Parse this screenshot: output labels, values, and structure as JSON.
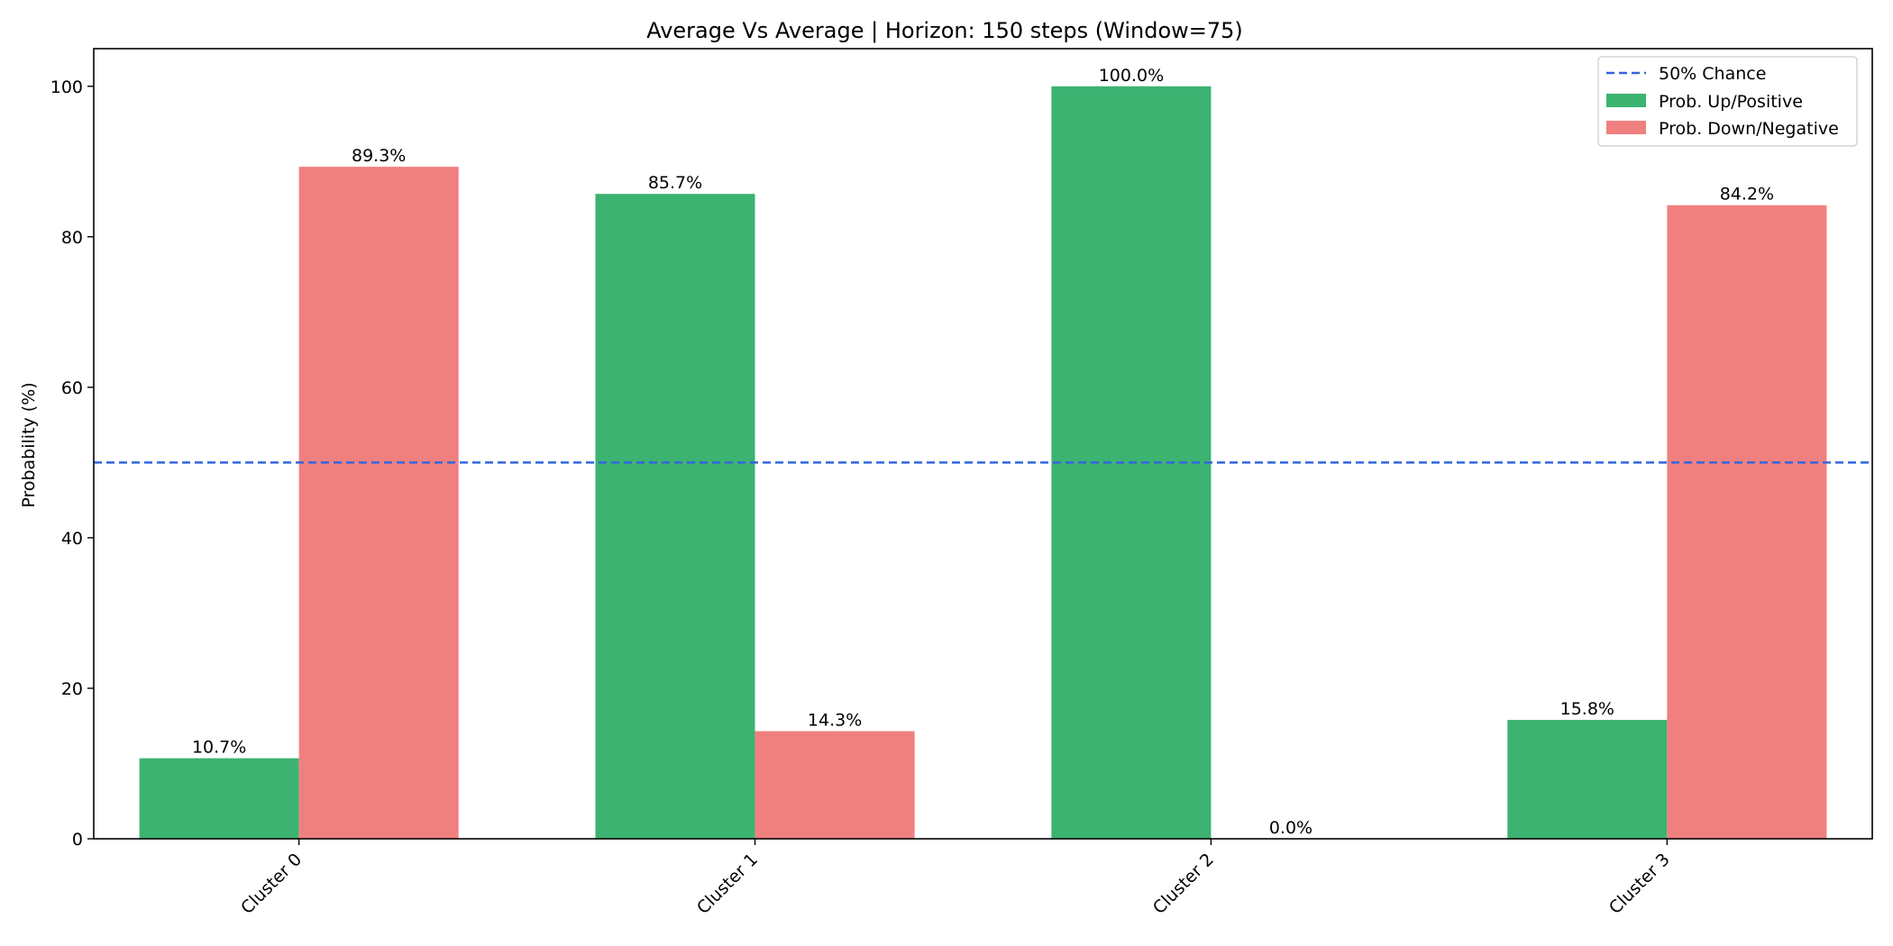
{
  "chart_data": {
    "type": "bar",
    "title": "Average Vs Average | Horizon: 150 steps (Window=75)",
    "xlabel": "",
    "ylabel": "Probability (%)",
    "categories": [
      "Cluster 0",
      "Cluster 1",
      "Cluster 2",
      "Cluster 3"
    ],
    "series": [
      {
        "name": "Prob. Up/Positive",
        "values": [
          10.7,
          85.7,
          100.0,
          15.8
        ],
        "labels": [
          "10.7%",
          "85.7%",
          "100.0%",
          "15.8%"
        ],
        "color": "#3cb371"
      },
      {
        "name": "Prob. Down/Negative",
        "values": [
          89.3,
          14.3,
          0.0,
          84.2
        ],
        "labels": [
          "89.3%",
          "14.3%",
          "0.0%",
          "84.2%"
        ],
        "color": "#f08080"
      }
    ],
    "reference_line": {
      "name": "50% Chance",
      "value": 50,
      "color": "#3366dd",
      "style": "dashed"
    },
    "ylim": [
      0,
      105
    ],
    "yticks": [
      0,
      20,
      40,
      60,
      80,
      100
    ],
    "grid": false,
    "legend_position": "top-right",
    "xtick_rotation": 45
  }
}
